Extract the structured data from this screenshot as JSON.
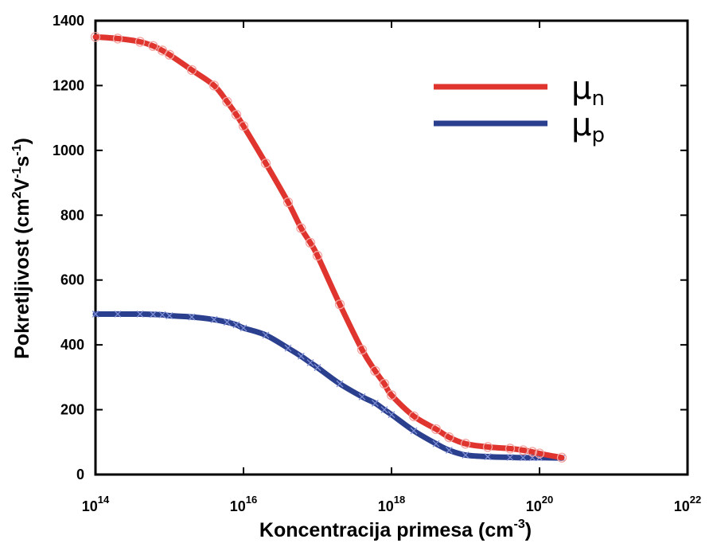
{
  "chart_data": {
    "type": "line",
    "xscale": "log",
    "xlim": [
      100000000000000.0,
      1e+22
    ],
    "ylim": [
      0,
      1400
    ],
    "x_ticks": [
      {
        "base": "10",
        "exp": "14"
      },
      {
        "base": "10",
        "exp": "16"
      },
      {
        "base": "10",
        "exp": "18"
      },
      {
        "base": "10",
        "exp": "20"
      },
      {
        "base": "10",
        "exp": "22"
      }
    ],
    "y_ticks": [
      "0",
      "200",
      "400",
      "600",
      "800",
      "1000",
      "1200",
      "1400"
    ],
    "xlabel": {
      "text": "Koncentracija primesa (cm",
      "sup": "-3",
      "tail": ")"
    },
    "ylabel": {
      "parts": [
        {
          "t": "Pokretljivost (cm"
        },
        {
          "t": "2",
          "sup": true
        },
        {
          "t": "V"
        },
        {
          "t": "-1",
          "sup": true
        },
        {
          "t": "s"
        },
        {
          "t": "-1",
          "sup": true
        },
        {
          "t": ")"
        }
      ]
    },
    "grid": false,
    "legend_position": "top-right",
    "series": [
      {
        "name": "μ",
        "subscript": "n",
        "color": "#e0352f",
        "marker": "circle",
        "x": [
          100000000000000.0,
          200000000000000.0,
          400000000000000.0,
          600000000000000.0,
          800000000000000.0,
          1000000000000000.0,
          2000000000000000.0,
          4000000000000000.0,
          6000000000000000.0,
          8000000000000000.0,
          1e+16,
          2e+16,
          4e+16,
          6e+16,
          8e+16,
          1e+17,
          2e+17,
          4e+17,
          6e+17,
          8e+17,
          1e+18,
          2e+18,
          4e+18,
          6e+18,
          1e+19,
          2e+19,
          4e+19,
          6e+19,
          8e+19,
          1e+20,
          2e+20
        ],
        "y": [
          1350,
          1345,
          1335,
          1322,
          1308,
          1295,
          1248,
          1200,
          1150,
          1110,
          1075,
          960,
          840,
          760,
          715,
          675,
          525,
          385,
          320,
          280,
          245,
          180,
          140,
          115,
          95,
          85,
          80,
          75,
          70,
          65,
          52
        ]
      },
      {
        "name": "μ",
        "subscript": "p",
        "color": "#2b3f8f",
        "marker": "x",
        "x": [
          100000000000000.0,
          200000000000000.0,
          400000000000000.0,
          600000000000000.0,
          800000000000000.0,
          1000000000000000.0,
          2000000000000000.0,
          4000000000000000.0,
          6000000000000000.0,
          8000000000000000.0,
          1e+16,
          2e+16,
          4e+16,
          6e+16,
          8e+16,
          1e+17,
          2e+17,
          4e+17,
          6e+17,
          8e+17,
          1e+18,
          2e+18,
          4e+18,
          6e+18,
          1e+19,
          2e+19,
          4e+19,
          6e+19,
          8e+19,
          1e+20,
          2e+20
        ],
        "y": [
          495,
          495,
          495,
          494,
          493,
          490,
          486,
          478,
          470,
          462,
          452,
          430,
          390,
          365,
          345,
          330,
          280,
          240,
          220,
          200,
          185,
          135,
          95,
          75,
          60,
          55,
          53,
          52,
          52,
          52,
          51
        ]
      }
    ]
  }
}
